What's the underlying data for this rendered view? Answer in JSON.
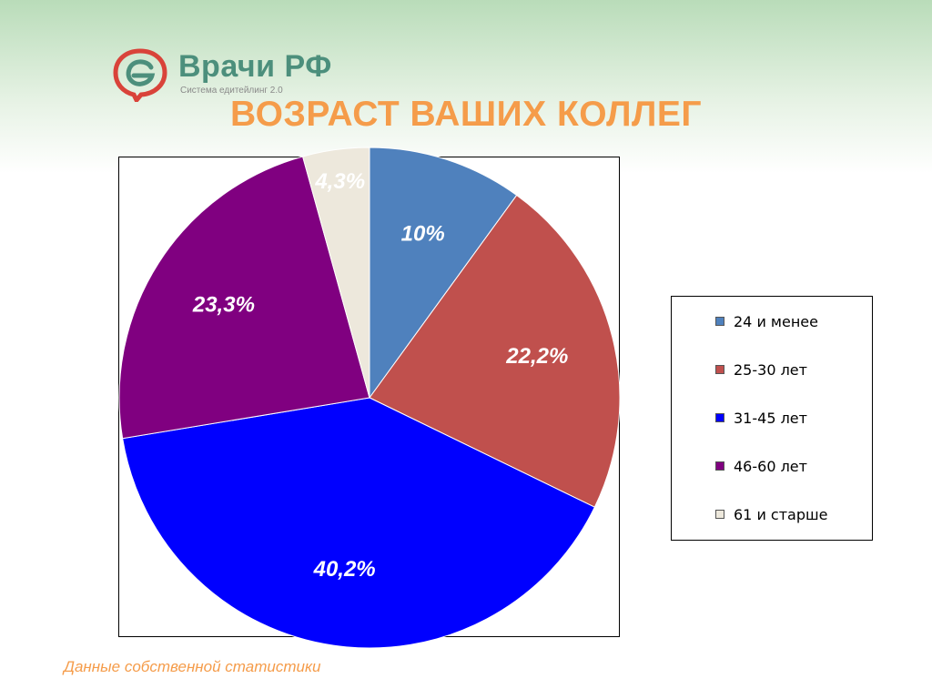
{
  "header": {
    "logo_name": "Врачи РФ",
    "logo_tagline": "Система едитейлинг 2.0",
    "slide_title": "ВОЗРАСТ ВАШИХ КОЛЛЕГ"
  },
  "footer": {
    "footnote": "Данные собственной статистики"
  },
  "colors": {
    "title": "#f59c4a",
    "logo_green": "#4c8f7c",
    "logo_red": "#d9433a"
  },
  "chart_data": {
    "type": "pie",
    "title": "",
    "start_angle_deg": 0,
    "direction": "clockwise",
    "legend_position": "right",
    "slices": [
      {
        "label": "24 и менее",
        "value": 10.0,
        "display": "10%",
        "color": "#4f81bd",
        "text_color": "#ffffff"
      },
      {
        "label": "25-30 лет",
        "value": 22.2,
        "display": "22,2%",
        "color": "#c0504d",
        "text_color": "#ffffff"
      },
      {
        "label": "31-45 лет",
        "value": 40.2,
        "display": "40,2%",
        "color": "#0000ff",
        "text_color": "#ffffff"
      },
      {
        "label": "46-60 лет",
        "value": 23.3,
        "display": "23,3%",
        "color": "#800080",
        "text_color": "#ffffff"
      },
      {
        "label": "61 и старше",
        "value": 4.3,
        "display": "4,3%",
        "color": "#ede8dc",
        "text_color": "#ffffff"
      }
    ]
  }
}
